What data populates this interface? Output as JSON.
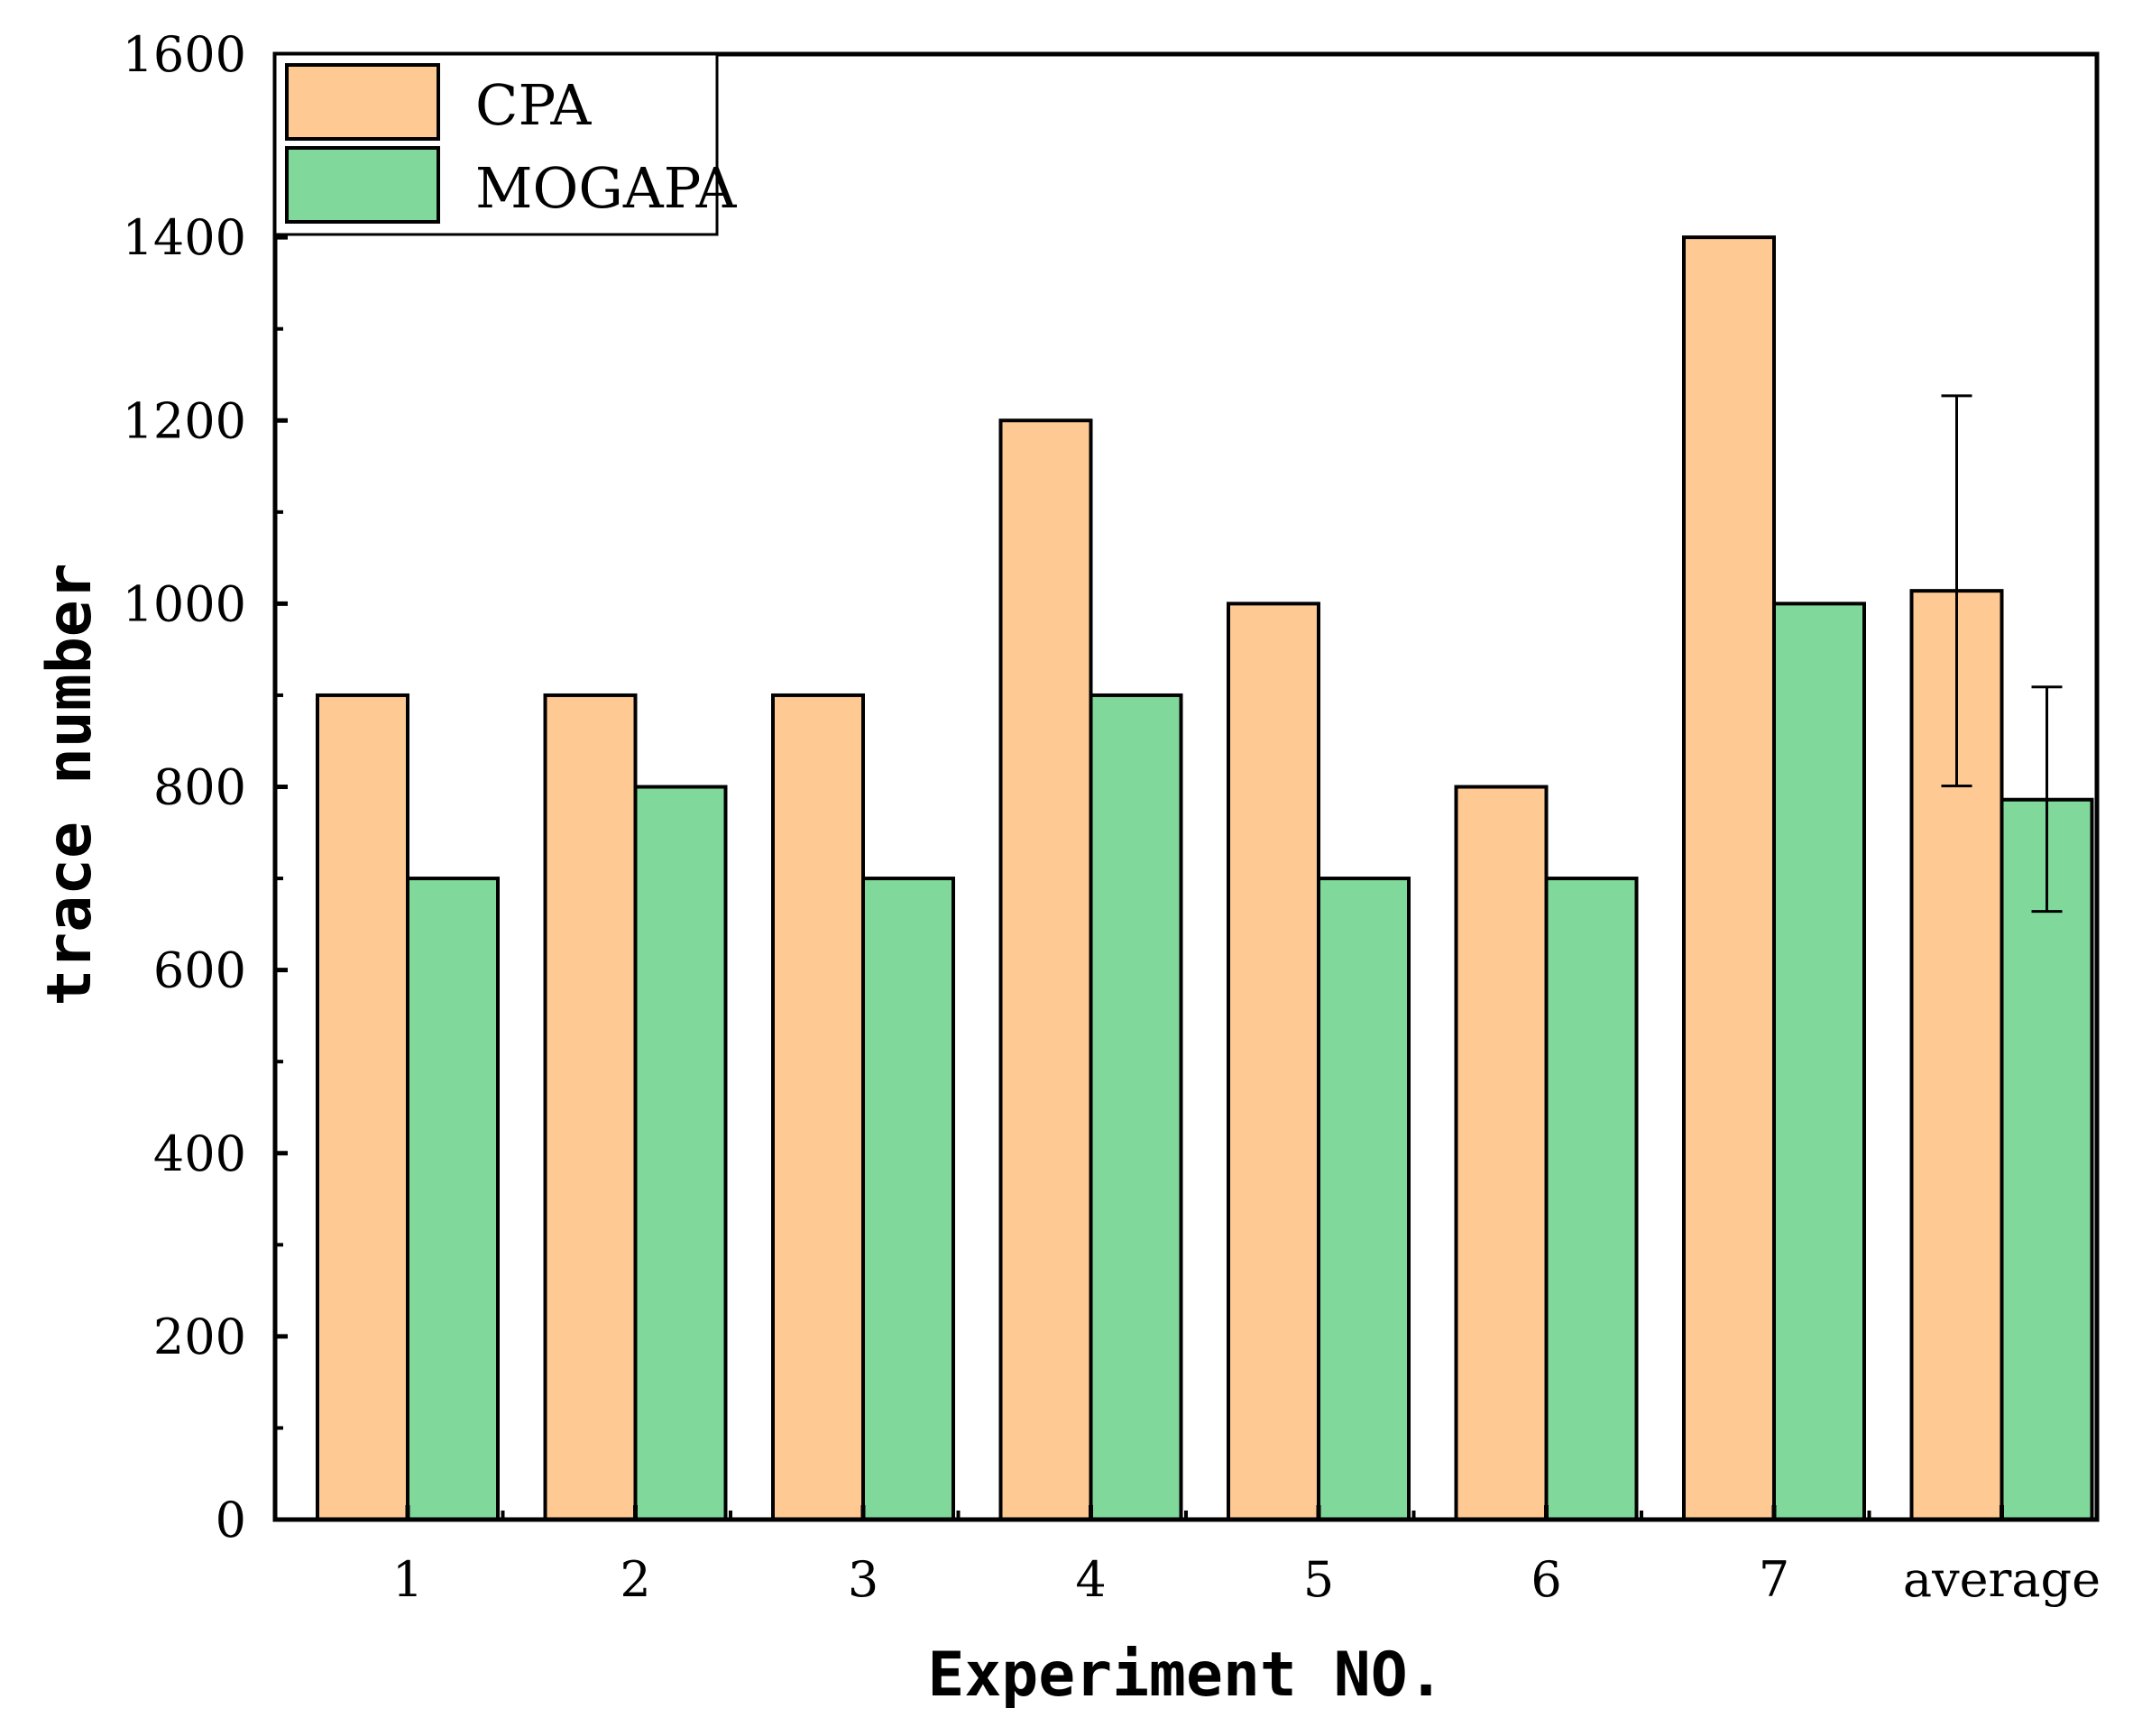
{
  "chart_data": {
    "type": "bar",
    "title": "",
    "xlabel": "Experiment NO.",
    "ylabel": "trace number",
    "ylim": [
      0,
      1600
    ],
    "yticks": [
      "0",
      "200",
      "400",
      "600",
      "800",
      "1000",
      "1200",
      "1400",
      "1600"
    ],
    "categories": [
      "1",
      "2",
      "3",
      "4",
      "5",
      "6",
      "7",
      "average"
    ],
    "series": [
      {
        "name": "CPA",
        "color": "#ffc994",
        "values": [
          900,
          900,
          900,
          1200,
          1000,
          800,
          1400,
          1014
        ],
        "error": [
          null,
          null,
          null,
          null,
          null,
          null,
          null,
          [
            801,
            1227
          ]
        ]
      },
      {
        "name": "MOGAPA",
        "color": "#80d99b",
        "values": [
          700,
          800,
          700,
          900,
          700,
          700,
          1000,
          786
        ],
        "error": [
          null,
          null,
          null,
          null,
          null,
          null,
          null,
          [
            664,
            909
          ]
        ]
      }
    ],
    "legend": "top-left",
    "grid": false
  }
}
